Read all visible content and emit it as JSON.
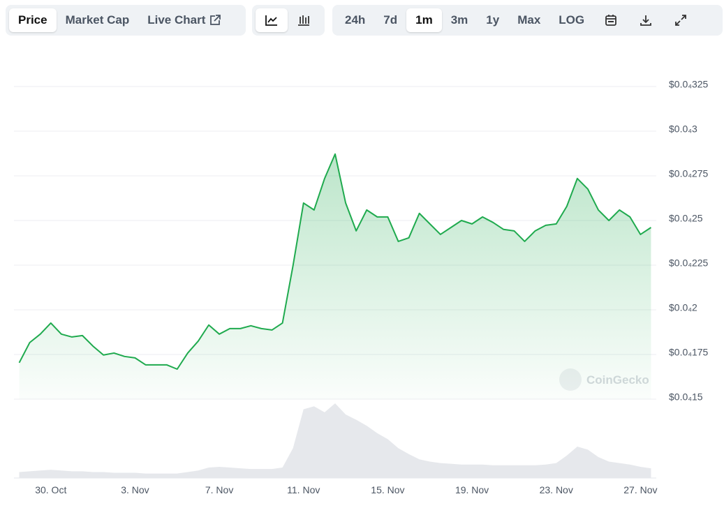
{
  "toolbar": {
    "views": [
      "Price",
      "Market Cap",
      "Live Chart"
    ],
    "active_view": 0,
    "ranges": [
      "24h",
      "7d",
      "1m",
      "3m",
      "1y",
      "Max",
      "LOG"
    ],
    "active_range": 2
  },
  "chart_data": {
    "type": "area",
    "watermark": "CoinGecko",
    "color": "#1faa4e",
    "volume_color": "#e6e8ec",
    "categories": [
      null,
      null,
      null,
      "30. Oct",
      null,
      null,
      null,
      null,
      null,
      null,
      null,
      "3. Nov",
      null,
      null,
      null,
      null,
      null,
      null,
      null,
      "7. Nov",
      null,
      null,
      null,
      null,
      null,
      null,
      null,
      "11. Nov",
      null,
      null,
      null,
      null,
      null,
      null,
      null,
      "15. Nov",
      null,
      null,
      null,
      null,
      null,
      null,
      null,
      "19. Nov",
      null,
      null,
      null,
      null,
      null,
      null,
      null,
      "23. Nov",
      null,
      null,
      null,
      null,
      null,
      null,
      null,
      "27. Nov",
      null
    ],
    "values": [
      1.704e-05,
      1.817e-05,
      1.864e-05,
      1.926e-05,
      1.864e-05,
      1.848e-05,
      1.856e-05,
      1.797e-05,
      1.747e-05,
      1.758e-05,
      1.739e-05,
      1.731e-05,
      1.692e-05,
      1.692e-05,
      1.692e-05,
      1.668e-05,
      1.758e-05,
      1.825e-05,
      1.915e-05,
      1.864e-05,
      1.895e-05,
      1.895e-05,
      1.911e-05,
      1.895e-05,
      1.887e-05,
      1.926e-05,
      2.247e-05,
      2.598e-05,
      2.559e-05,
      2.735e-05,
      2.872e-05,
      2.598e-05,
      2.442e-05,
      2.559e-05,
      2.52e-05,
      2.52e-05,
      2.383e-05,
      2.403e-05,
      2.54e-05,
      2.481e-05,
      2.422e-05,
      2.461e-05,
      2.5e-05,
      2.481e-05,
      2.52e-05,
      2.489e-05,
      2.45e-05,
      2.442e-05,
      2.383e-05,
      2.442e-05,
      2.473e-05,
      2.481e-05,
      2.579e-05,
      2.735e-05,
      2.676e-05,
      2.559e-05,
      2.5e-05,
      2.559e-05,
      2.52e-05,
      2.422e-05,
      2.461e-05
    ],
    "volume": [
      8,
      9,
      10,
      11,
      10,
      9,
      9,
      8,
      8,
      7,
      7,
      7,
      6,
      6,
      6,
      6,
      8,
      10,
      14,
      15,
      14,
      13,
      12,
      12,
      12,
      14,
      40,
      92,
      96,
      88,
      100,
      85,
      78,
      70,
      60,
      52,
      40,
      32,
      25,
      22,
      20,
      19,
      18,
      18,
      18,
      17,
      17,
      17,
      17,
      17,
      18,
      20,
      30,
      42,
      38,
      28,
      22,
      20,
      18,
      15,
      13
    ],
    "ylim": [
      1.5e-05,
      3.25e-05
    ],
    "yticks": [
      {
        "value": 3.25e-05,
        "label": "$0.0₄325"
      },
      {
        "value": 3e-05,
        "label": "$0.0₄3"
      },
      {
        "value": 2.75e-05,
        "label": "$0.0₄275"
      },
      {
        "value": 2.5e-05,
        "label": "$0.0₄25"
      },
      {
        "value": 2.25e-05,
        "label": "$0.0₄225"
      },
      {
        "value": 2e-05,
        "label": "$0.0₄2"
      },
      {
        "value": 1.75e-05,
        "label": "$0.0₄175"
      },
      {
        "value": 1.5e-05,
        "label": "$0.0₄15"
      }
    ],
    "grid": true
  }
}
